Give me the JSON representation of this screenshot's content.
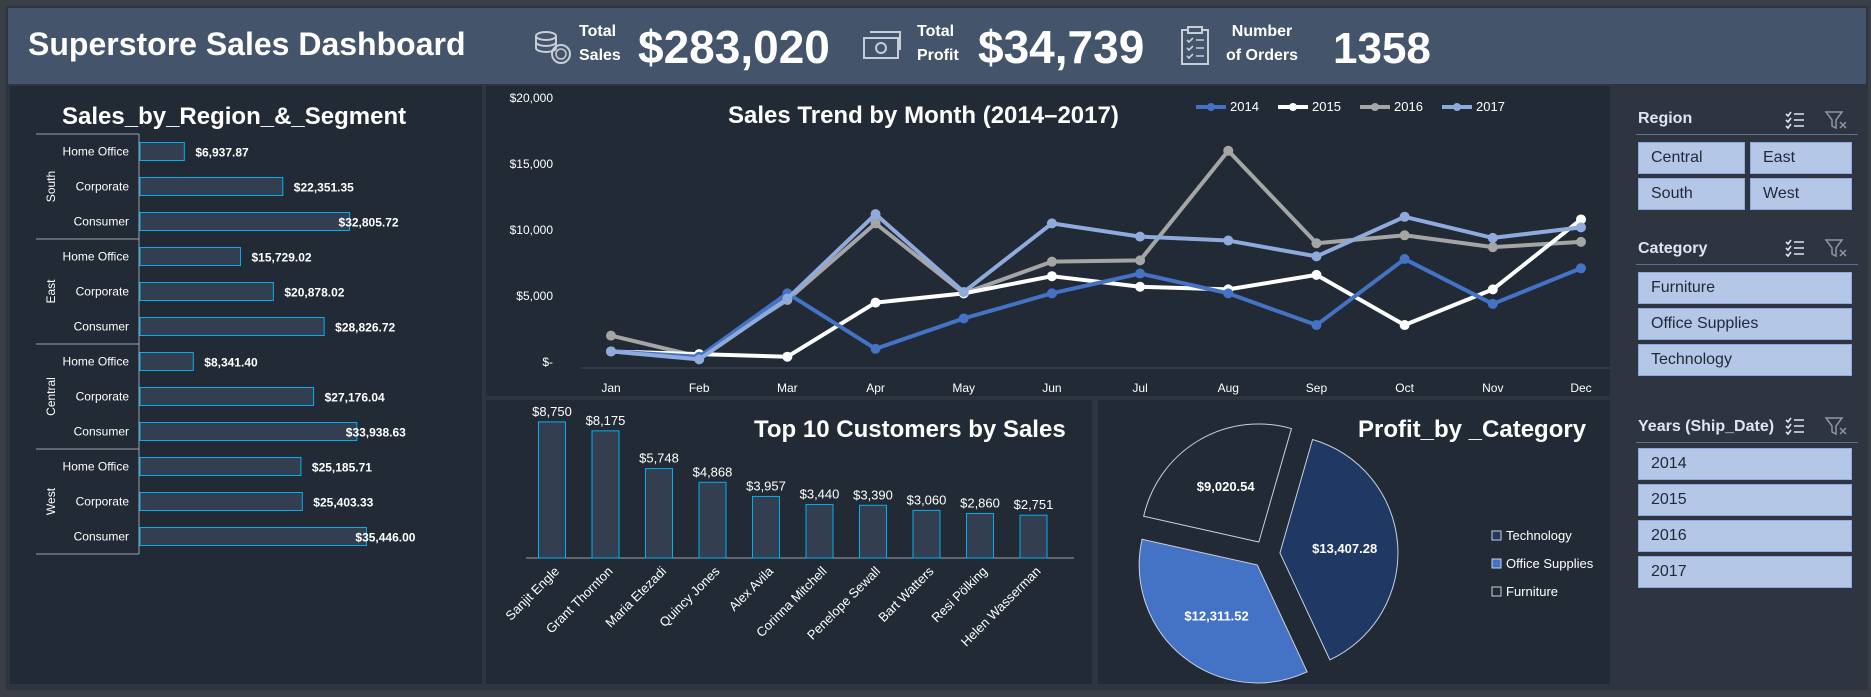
{
  "header": {
    "title": "Superstore Sales Dashboard",
    "kpis": [
      {
        "label_line1": "Total",
        "label_line2": "Sales",
        "value": "$283,020",
        "icon": "coins-icon"
      },
      {
        "label_line1": "Total",
        "label_line2": "Profit",
        "value": "$34,739",
        "icon": "money-icon"
      },
      {
        "label_line1": "Number",
        "label_line2": "of Orders",
        "value": "1358",
        "icon": "checklist-icon"
      }
    ]
  },
  "colors": {
    "panel": "#222a35",
    "header": "#44546a",
    "bar": "#333f50",
    "bar_border": "#00b0f0",
    "y2014": "#4472c4",
    "y2015": "#ffffff",
    "y2016": "#a5a5a5",
    "y2017": "#8faadc",
    "technology": "#1f3864",
    "office_supplies": "#4472c4",
    "furniture": "#222a35"
  },
  "chart_data": [
    {
      "type": "bar",
      "orientation": "horizontal",
      "title": "Sales_by_Region_&_Segment",
      "groups": [
        {
          "region": "South",
          "segments": [
            "Home Office",
            "Corporate",
            "Consumer"
          ],
          "values": [
            6937.87,
            22351.35,
            32805.72
          ],
          "labels": [
            "$6,937.87",
            "$22,351.35",
            "$32,805.72"
          ]
        },
        {
          "region": "East",
          "segments": [
            "Home Office",
            "Corporate",
            "Consumer"
          ],
          "values": [
            15729.02,
            20878.02,
            28826.72
          ],
          "labels": [
            "$15,729.02",
            "$20,878.02",
            "$28,826.72"
          ]
        },
        {
          "region": "Central",
          "segments": [
            "Home Office",
            "Corporate",
            "Consumer"
          ],
          "values": [
            8341.4,
            27176.04,
            33938.63
          ],
          "labels": [
            "$8,341.40",
            "$27,176.04",
            "$33,938.63"
          ]
        },
        {
          "region": "West",
          "segments": [
            "Home Office",
            "Corporate",
            "Consumer"
          ],
          "values": [
            25185.71,
            25403.33,
            35446.0
          ],
          "labels": [
            "$25,185.71",
            "$25,403.33",
            "$35,446.00"
          ]
        }
      ],
      "xlim": [
        0,
        36000
      ]
    },
    {
      "type": "line",
      "title": "Sales Trend by Month (2014–2017)",
      "categories": [
        "Jan",
        "Feb",
        "Mar",
        "Apr",
        "May",
        "Jun",
        "Jul",
        "Aug",
        "Sep",
        "Oct",
        "Nov",
        "Dec"
      ],
      "yticks": [
        "$20,000",
        "$15,000",
        "$10,000",
        "$5,000",
        "$-"
      ],
      "ylim": [
        0,
        20000
      ],
      "legend_position": "top-right",
      "grid": false,
      "series": [
        {
          "name": "2014",
          "values": [
            800,
            400,
            5200,
            1000,
            3300,
            5200,
            6700,
            5200,
            2800,
            7800,
            4400,
            7100
          ]
        },
        {
          "name": "2015",
          "values": [
            800,
            600,
            400,
            4500,
            5200,
            6500,
            5700,
            5500,
            6600,
            2800,
            5500,
            10800
          ]
        },
        {
          "name": "2016",
          "values": [
            2000,
            400,
            4700,
            10500,
            5200,
            7600,
            7700,
            16000,
            9000,
            9600,
            8700,
            9100
          ]
        },
        {
          "name": "2017",
          "values": [
            800,
            200,
            4800,
            11200,
            5300,
            10500,
            9500,
            9200,
            8000,
            11000,
            9400,
            10200
          ]
        }
      ]
    },
    {
      "type": "bar",
      "title": "Top 10 Customers by Sales",
      "categories": [
        "Sanjit Engle",
        "Grant Thornton",
        "Maria Etezadi",
        "Quincy Jones",
        "Alex Avila",
        "Corinna Mitchell",
        "Penelope Sewall",
        "Bart Watters",
        "Resi Pölking",
        "Helen Wasserman"
      ],
      "values": [
        8750,
        8175,
        5748,
        4868,
        3957,
        3440,
        3390,
        3060,
        2860,
        2751
      ],
      "labels": [
        "$8,750",
        "$8,175",
        "$5,748",
        "$4,868",
        "$3,957",
        "$3,440",
        "$3,390",
        "$3,060",
        "$2,860",
        "$2,751"
      ],
      "ylim": [
        0,
        9000
      ]
    },
    {
      "type": "pie",
      "title": "Profit_by _Category",
      "categories": [
        "Technology",
        "Office Supplies",
        "Furniture"
      ],
      "values": [
        13407.28,
        12311.52,
        9020.54
      ],
      "labels": [
        "$13,407.28",
        "$12,311.52",
        "$9,020.54"
      ],
      "legend_position": "right"
    }
  ],
  "slicers": [
    {
      "title": "Region",
      "items": [
        "Central",
        "East",
        "South",
        "West"
      ]
    },
    {
      "title": "Category",
      "items": [
        "Furniture",
        "Office Supplies",
        "Technology"
      ]
    },
    {
      "title": "Years (Ship_Date)",
      "items": [
        "2014",
        "2015",
        "2016",
        "2017"
      ]
    }
  ]
}
